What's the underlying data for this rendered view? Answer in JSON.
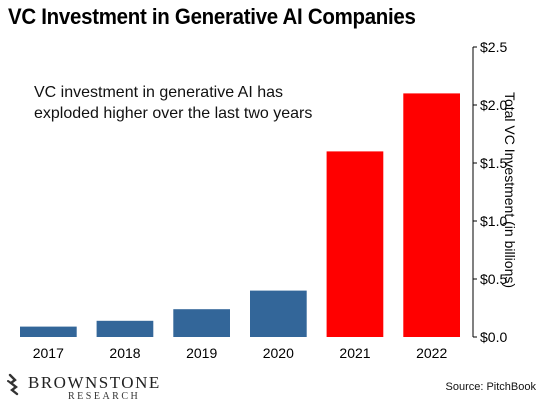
{
  "chart_data": {
    "type": "bar",
    "title": "VC Investment in Generative AI Companies",
    "annotation": [
      "VC investment in generative AI has",
      "exploded higher over the last two years"
    ],
    "categories": [
      "2017",
      "2018",
      "2019",
      "2020",
      "2021",
      "2022"
    ],
    "values": [
      0.09,
      0.14,
      0.24,
      0.4,
      1.6,
      2.1
    ],
    "bar_colors": [
      "#336699",
      "#336699",
      "#336699",
      "#336699",
      "#ff0000",
      "#ff0000"
    ],
    "ylabel": "Total VC Investment (in billions)",
    "ylim": [
      0,
      2.5
    ],
    "yticks": [
      0,
      0.5,
      1.0,
      1.5,
      2.0,
      2.5
    ],
    "ytick_labels": [
      "$0.0",
      "$0.5",
      "$1.0",
      "$1.5",
      "$2.0",
      "$2.5"
    ],
    "y_axis_side": "right",
    "grid": false
  },
  "branding": {
    "logo_word": "BROWNSTONE",
    "logo_sub": "RESEARCH",
    "source": "Source: PitchBook"
  }
}
